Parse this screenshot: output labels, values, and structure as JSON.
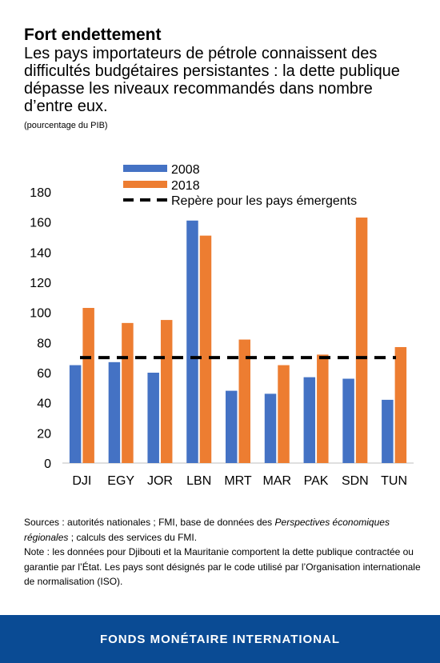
{
  "header": {
    "title": "Fort endettement",
    "subtitle": "Les pays importateurs de pétrole connaissent des difficultés budgétaires persistantes : la dette publique dépasse les niveaux recommandés dans nombre d’entre eux.",
    "unit": "(pourcentage du PIB)"
  },
  "chart_data": {
    "type": "bar",
    "categories": [
      "DJI",
      "EGY",
      "JOR",
      "LBN",
      "MRT",
      "MAR",
      "PAK",
      "SDN",
      "TUN"
    ],
    "series": [
      {
        "name": "2008",
        "color": "#4472c4",
        "values": [
          65,
          67,
          60,
          161,
          48,
          46,
          57,
          56,
          42
        ]
      },
      {
        "name": "2018",
        "color": "#ed7d31",
        "values": [
          103,
          93,
          95,
          151,
          82,
          65,
          72,
          163,
          77
        ]
      }
    ],
    "reference_line": {
      "name": "Repère pour les pays émergents",
      "value": 70,
      "style": "dashed",
      "color": "#000000"
    },
    "ylim": [
      0,
      180
    ],
    "yticks": [
      0,
      20,
      40,
      60,
      80,
      100,
      120,
      140,
      160,
      180
    ],
    "grid": false,
    "legend": "top"
  },
  "notes": {
    "sources_prefix": "Sources : autorités nationales ; FMI, base de données des ",
    "sources_italic": "Perspectives économiques régionales",
    "sources_suffix": " ; calculs des services du FMI.",
    "note": "Note : les données pour Djibouti et la Mauritanie comportent la dette publique contractée ou garantie par l’État. Les pays sont désignés par le code utilisé par l’Organisation internationale de normalisation (ISO)."
  },
  "footer": {
    "label": "FONDS MONÉTAIRE INTERNATIONAL"
  }
}
